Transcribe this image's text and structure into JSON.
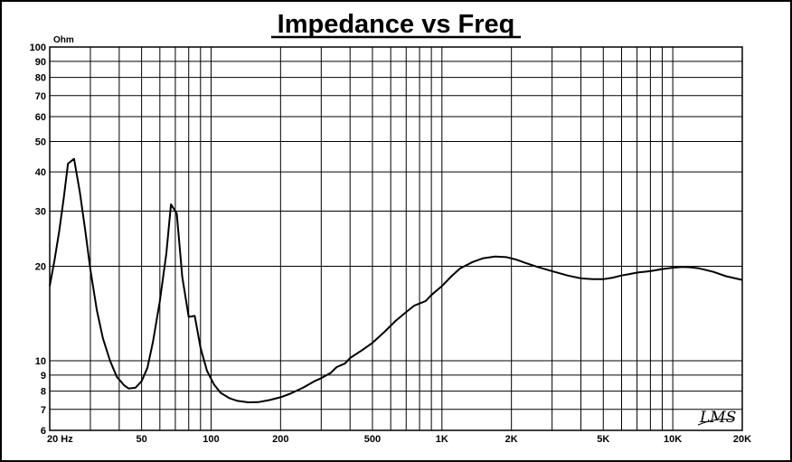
{
  "chart_data": {
    "type": "line",
    "title": "Impedance vs Freq",
    "ylabel": "Ohm",
    "x_scale": "log",
    "y_scale": "log",
    "xlim": [
      20,
      20000
    ],
    "ylim": [
      6,
      100
    ],
    "grid": true,
    "x_ticks": [
      {
        "value": 20,
        "label": "20  Hz"
      },
      {
        "value": 50,
        "label": "50"
      },
      {
        "value": 100,
        "label": "100"
      },
      {
        "value": 200,
        "label": "200"
      },
      {
        "value": 500,
        "label": "500"
      },
      {
        "value": 1000,
        "label": "1K"
      },
      {
        "value": 2000,
        "label": "2K"
      },
      {
        "value": 5000,
        "label": "5K"
      },
      {
        "value": 10000,
        "label": "10K"
      },
      {
        "value": 20000,
        "label": "20K"
      }
    ],
    "y_ticks": [
      {
        "value": 100,
        "label": "100"
      },
      {
        "value": 90,
        "label": "90"
      },
      {
        "value": 80,
        "label": "80"
      },
      {
        "value": 70,
        "label": "70"
      },
      {
        "value": 60,
        "label": "60"
      },
      {
        "value": 50,
        "label": "50"
      },
      {
        "value": 40,
        "label": "40"
      },
      {
        "value": 30,
        "label": "30"
      },
      {
        "value": 20,
        "label": "20"
      },
      {
        "value": 10,
        "label": "10"
      },
      {
        "value": 9,
        "label": "9"
      },
      {
        "value": 8,
        "label": "8"
      },
      {
        "value": 7,
        "label": "7"
      },
      {
        "value": 6,
        "label": "6"
      }
    ],
    "series": [
      {
        "color": "#000000",
        "points": [
          [
            20,
            17.3
          ],
          [
            21,
            21
          ],
          [
            22,
            26
          ],
          [
            23,
            33
          ],
          [
            24,
            42.5
          ],
          [
            25.5,
            44
          ],
          [
            27,
            34.5
          ],
          [
            28.5,
            26
          ],
          [
            30,
            19.5
          ],
          [
            32,
            14.5
          ],
          [
            34,
            11.8
          ],
          [
            36.5,
            10
          ],
          [
            39,
            8.9
          ],
          [
            42,
            8.35
          ],
          [
            44,
            8.15
          ],
          [
            47,
            8.2
          ],
          [
            50,
            8.6
          ],
          [
            53,
            9.5
          ],
          [
            56,
            11.5
          ],
          [
            60,
            15.5
          ],
          [
            64,
            22
          ],
          [
            67,
            31.5
          ],
          [
            71,
            29.5
          ],
          [
            75,
            18.5
          ],
          [
            80,
            13.8
          ],
          [
            85,
            13.9
          ],
          [
            90,
            11
          ],
          [
            96,
            9.3
          ],
          [
            103,
            8.4
          ],
          [
            110,
            7.9
          ],
          [
            120,
            7.6
          ],
          [
            130,
            7.45
          ],
          [
            145,
            7.37
          ],
          [
            160,
            7.38
          ],
          [
            180,
            7.5
          ],
          [
            200,
            7.65
          ],
          [
            220,
            7.85
          ],
          [
            250,
            8.2
          ],
          [
            280,
            8.6
          ],
          [
            300,
            8.8
          ],
          [
            330,
            9.15
          ],
          [
            350,
            9.55
          ],
          [
            380,
            9.8
          ],
          [
            400,
            10.2
          ],
          [
            450,
            10.8
          ],
          [
            500,
            11.4
          ],
          [
            560,
            12.3
          ],
          [
            630,
            13.4
          ],
          [
            700,
            14.3
          ],
          [
            760,
            15
          ],
          [
            850,
            15.5
          ],
          [
            900,
            16.2
          ],
          [
            1000,
            17.3
          ],
          [
            1100,
            18.6
          ],
          [
            1200,
            19.7
          ],
          [
            1350,
            20.6
          ],
          [
            1500,
            21.2
          ],
          [
            1700,
            21.5
          ],
          [
            1900,
            21.4
          ],
          [
            2100,
            21
          ],
          [
            2300,
            20.5
          ],
          [
            2600,
            19.9
          ],
          [
            3000,
            19.3
          ],
          [
            3500,
            18.7
          ],
          [
            4000,
            18.3
          ],
          [
            4500,
            18.2
          ],
          [
            5000,
            18.2
          ],
          [
            5500,
            18.4
          ],
          [
            6000,
            18.7
          ],
          [
            6500,
            18.9
          ],
          [
            7000,
            19.1
          ],
          [
            8000,
            19.3
          ],
          [
            9000,
            19.6
          ],
          [
            10000,
            19.8
          ],
          [
            11000,
            19.9
          ],
          [
            12000,
            19.85
          ],
          [
            13000,
            19.7
          ],
          [
            15000,
            19.2
          ],
          [
            17000,
            18.6
          ],
          [
            20000,
            18.1
          ]
        ]
      }
    ]
  },
  "logo": {
    "text": "LMS"
  }
}
